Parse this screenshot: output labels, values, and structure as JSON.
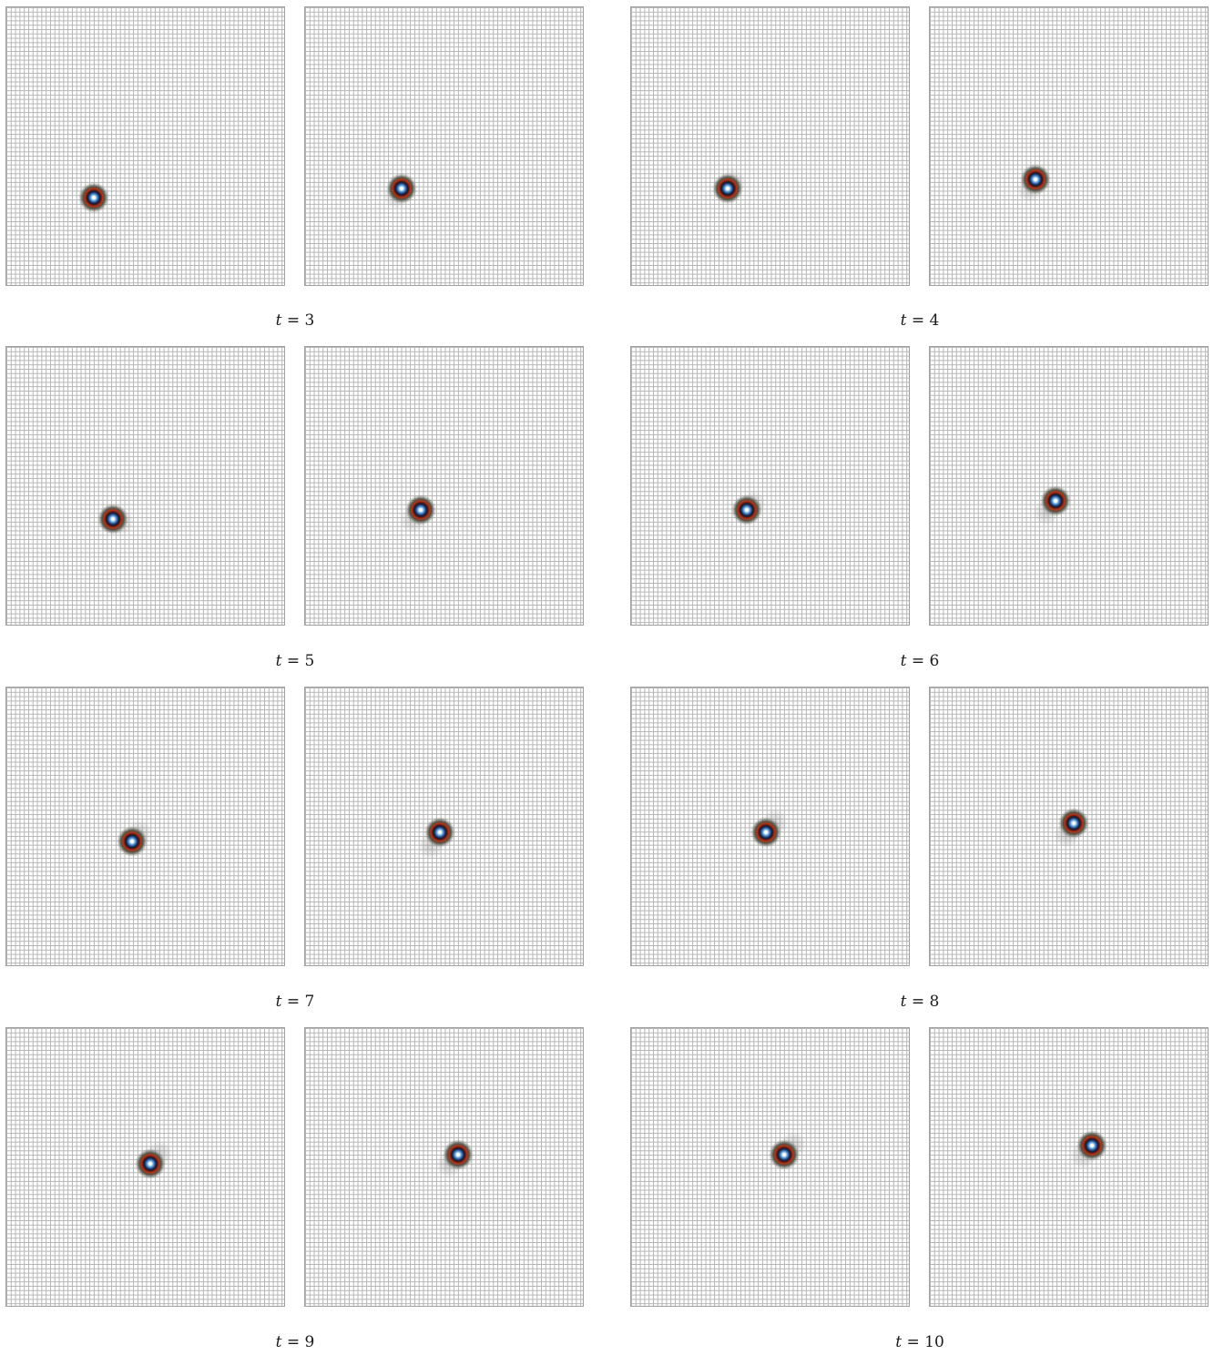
{
  "figure": {
    "groups": [
      {
        "label": "t = 3",
        "t_value": "3"
      },
      {
        "label": "t = 4",
        "t_value": "4"
      },
      {
        "label": "t = 5",
        "t_value": "5"
      },
      {
        "label": "t = 6",
        "t_value": "6"
      },
      {
        "label": "t = 7",
        "t_value": "7"
      },
      {
        "label": "t = 8",
        "t_value": "8"
      },
      {
        "label": "t = 9",
        "t_value": "9"
      },
      {
        "label": "t = 10",
        "t_value": "10"
      }
    ],
    "colors": {
      "grid_line": "#b4b4b4",
      "panel_border": "#a0a0a0",
      "blob_core": "#ffffff",
      "blob_inner": "#4d88c8",
      "blob_ring_dark": "#1a1a2a",
      "blob_ring_red": "#b3381a",
      "label_text": "#1a1a1a"
    }
  }
}
